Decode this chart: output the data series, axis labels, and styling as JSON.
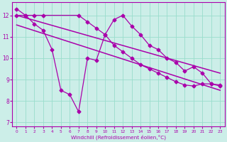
{
  "bg_color": "#cceee8",
  "line_color": "#aa00aa",
  "grid_color": "#99ddcc",
  "xlabel": "Windchill (Refroidissement éolien,°C)",
  "xlim": [
    -0.5,
    23.5
  ],
  "ylim": [
    6.8,
    12.6
  ],
  "yticks": [
    7,
    8,
    9,
    10,
    11,
    12
  ],
  "xticks": [
    0,
    1,
    2,
    3,
    4,
    5,
    6,
    7,
    8,
    9,
    10,
    11,
    12,
    13,
    14,
    15,
    16,
    17,
    18,
    19,
    20,
    21,
    22,
    23
  ],
  "series1_x": [
    0,
    1,
    2,
    3,
    4,
    5,
    6,
    7,
    8,
    9,
    10,
    11,
    12,
    13,
    14,
    15,
    16,
    17,
    18,
    19,
    20,
    21,
    22,
    23
  ],
  "series1_y": [
    12.3,
    12.0,
    11.6,
    11.3,
    10.4,
    8.5,
    8.3,
    7.5,
    10.0,
    9.9,
    11.1,
    11.8,
    12.0,
    11.5,
    11.1,
    10.6,
    10.4,
    10.0,
    9.8,
    9.4,
    9.6,
    9.3,
    8.8,
    8.7
  ],
  "series2_x": [
    0,
    1,
    2,
    3,
    7,
    8,
    9,
    10,
    11,
    12,
    13,
    14,
    15,
    16,
    17,
    18,
    19,
    20,
    21,
    22,
    23
  ],
  "series2_y": [
    12.0,
    12.0,
    12.0,
    12.0,
    12.0,
    11.7,
    11.4,
    11.1,
    10.6,
    10.3,
    10.0,
    9.7,
    9.5,
    9.3,
    9.1,
    8.9,
    8.75,
    8.7,
    8.8,
    8.8,
    8.75
  ],
  "trend1_x": [
    0,
    23
  ],
  "trend1_y": [
    12.0,
    9.3
  ],
  "trend2_x": [
    0,
    23
  ],
  "trend2_y": [
    11.55,
    8.5
  ],
  "marker": "D",
  "markersize": 2.5,
  "linewidth": 0.9
}
